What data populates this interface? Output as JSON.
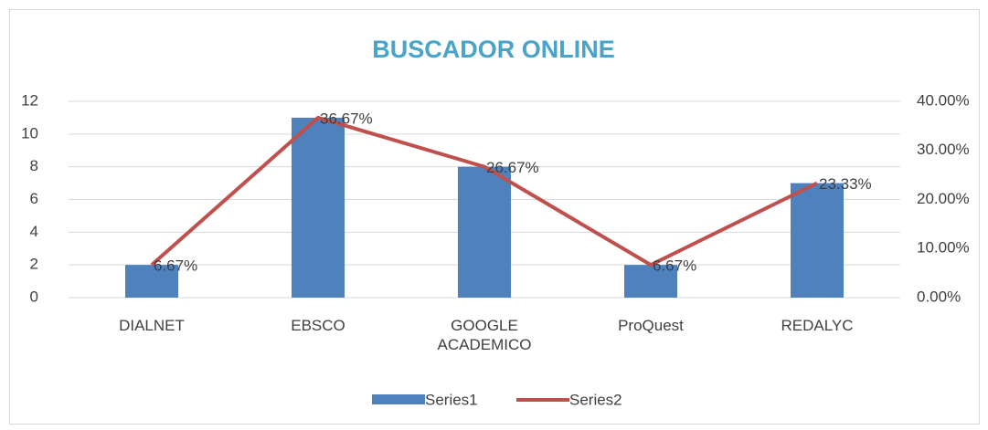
{
  "chart_data": {
    "type": "bar-line",
    "title": "BUSCADOR ONLINE",
    "categories": [
      "DIALNET",
      "EBSCO",
      "GOOGLE ACADEMICO",
      "ProQuest",
      "REDALYC"
    ],
    "series": [
      {
        "name": "Series1",
        "type": "bar",
        "color": "#4f81bd",
        "values": [
          2,
          11,
          8,
          2,
          7
        ]
      },
      {
        "name": "Series2",
        "type": "line",
        "axis": "y2",
        "color": "#c0504d",
        "values": [
          6.67,
          36.67,
          26.67,
          6.67,
          23.33
        ],
        "value_labels": [
          "6.67%",
          "36.67%",
          "26.67%",
          "6.67%",
          "23.33%"
        ]
      }
    ],
    "ylim": [
      0,
      12
    ],
    "yticks": [
      0,
      2,
      4,
      6,
      8,
      10,
      12
    ],
    "y2lim": [
      0,
      40
    ],
    "y2ticks": [
      {
        "value": 0,
        "label": "0.00%"
      },
      {
        "value": 10,
        "label": "10.00%"
      },
      {
        "value": 20,
        "label": "20.00%"
      },
      {
        "value": 30,
        "label": "30.00%"
      },
      {
        "value": 40,
        "label": "40.00%"
      }
    ],
    "grid": true,
    "legend": "bottom"
  }
}
